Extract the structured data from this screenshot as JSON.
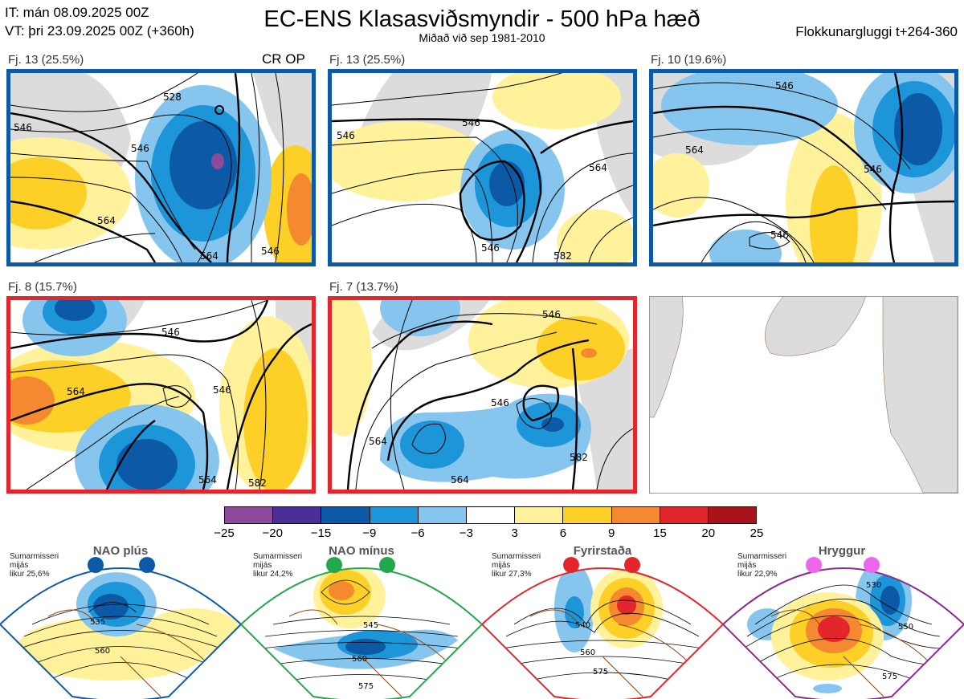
{
  "header": {
    "it_line": "IT: mán 08.09.2025 00Z",
    "vt_line": "VT: þri 23.09.2025 00Z  (+360h)",
    "title": "EC-ENS Klasasviðsmyndir - 500 hPa hæð",
    "subtitle": "Miðað við sep 1981-2010",
    "window": "Flokkunargluggi t+264-360"
  },
  "panels": [
    {
      "label": "Fj. 13 (25.5%)",
      "tag": "CR OP",
      "frame": "#0c5aa6"
    },
    {
      "label": "Fj. 13 (25.5%)",
      "tag": "",
      "frame": "#0c5aa6"
    },
    {
      "label": "Fj. 10 (19.6%)",
      "tag": "",
      "frame": "#0c5aa6"
    },
    {
      "label": "Fj. 8 (15.7%)",
      "tag": "",
      "frame": "#e3262b"
    },
    {
      "label": "Fj. 7 (13.7%)",
      "tag": "",
      "frame": "#e3262b"
    }
  ],
  "contour_labels": {
    "p1": [
      "546",
      "528",
      "546",
      "564",
      "564",
      "546"
    ],
    "p2": [
      "546",
      "546",
      "564",
      "546",
      "582"
    ],
    "p3": [
      "546",
      "564",
      "546",
      "546"
    ],
    "p4": [
      "546",
      "564",
      "546",
      "564",
      "582"
    ],
    "p5": [
      "546",
      "546",
      "564",
      "564",
      "582"
    ]
  },
  "colorbar": {
    "ticks": [
      "−25",
      "−20",
      "−15",
      "−9",
      "−6",
      "−3",
      "3",
      "6",
      "9",
      "15",
      "20",
      "25"
    ],
    "colors": [
      "#8e4a9a",
      "#4b2f96",
      "#0c5aa6",
      "#1d95d9",
      "#86c6ee",
      "#ffffff",
      "#fff29a",
      "#fdd028",
      "#f4892f",
      "#e3262b",
      "#a8141a"
    ]
  },
  "regimes": [
    {
      "title": "NAO plús",
      "info": "Sumarmisseri\nmijás\nlikur 25,6%",
      "dot_color": "#0c5aa6",
      "frame": "#0c5aa6",
      "labels": [
        "535",
        "560"
      ]
    },
    {
      "title": "NAO mínus",
      "info": "Sumarmisseri\nmijás\nlikur 24,2%",
      "dot_color": "#22a84a",
      "frame": "#22a84a",
      "labels": [
        "545",
        "560",
        "575"
      ]
    },
    {
      "title": "Fyrirstaða",
      "info": "Sumarmisseri\nmijás\nlikur 27,3%",
      "dot_color": "#e3262b",
      "frame": "#e3262b",
      "labels": [
        "540",
        "560",
        "575"
      ]
    },
    {
      "title": "Hryggur",
      "info": "Sumarmisseri\nmijás\nlikur 22,9%",
      "dot_color": "#ee66ee",
      "frame": "#8b2b8b",
      "labels": [
        "530",
        "550",
        "575"
      ]
    }
  ],
  "icons": {
    "info_icon": "none"
  }
}
